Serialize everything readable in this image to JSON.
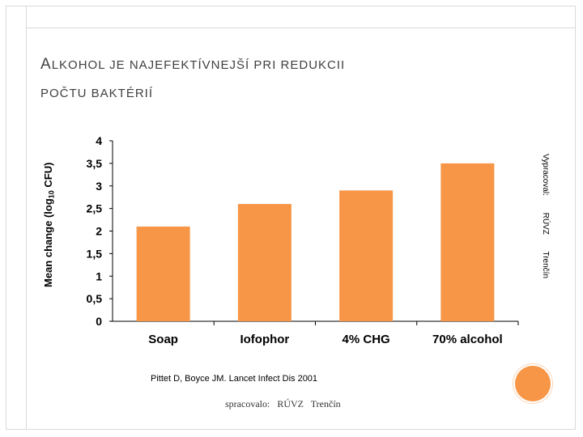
{
  "slide": {
    "title_first_letter": "A",
    "title_rest_line1": "LKOHOL JE NAJEFEKTÍVNEJŠÍ PRI REDUKCII",
    "title_line2": "POČTU BAKTÉRIÍ",
    "side_note": "Vypracoval: RÚVZ Trenčín",
    "source": "Pittet D, Boyce JM. Lancet Infect Dis 2001",
    "processed_by": "spracovalo: RÚVZ Trenčín",
    "accent_color": "#f79646"
  },
  "chart_data": {
    "type": "bar",
    "categories": [
      "Soap",
      "Iofophor",
      "4% CHG",
      "70% alcohol"
    ],
    "values": [
      2.1,
      2.6,
      2.9,
      3.5
    ],
    "ylabel_main": "Mean change (log",
    "ylabel_sub": "10",
    "ylabel_end": " CFU)",
    "xlabel": "",
    "ylim": [
      0,
      4
    ],
    "yticks": [
      "0",
      "0,5",
      "1",
      "1,5",
      "2",
      "2,5",
      "3",
      "3,5",
      "4"
    ],
    "bar_color": "#f79646",
    "grid": false,
    "legend": "none"
  }
}
